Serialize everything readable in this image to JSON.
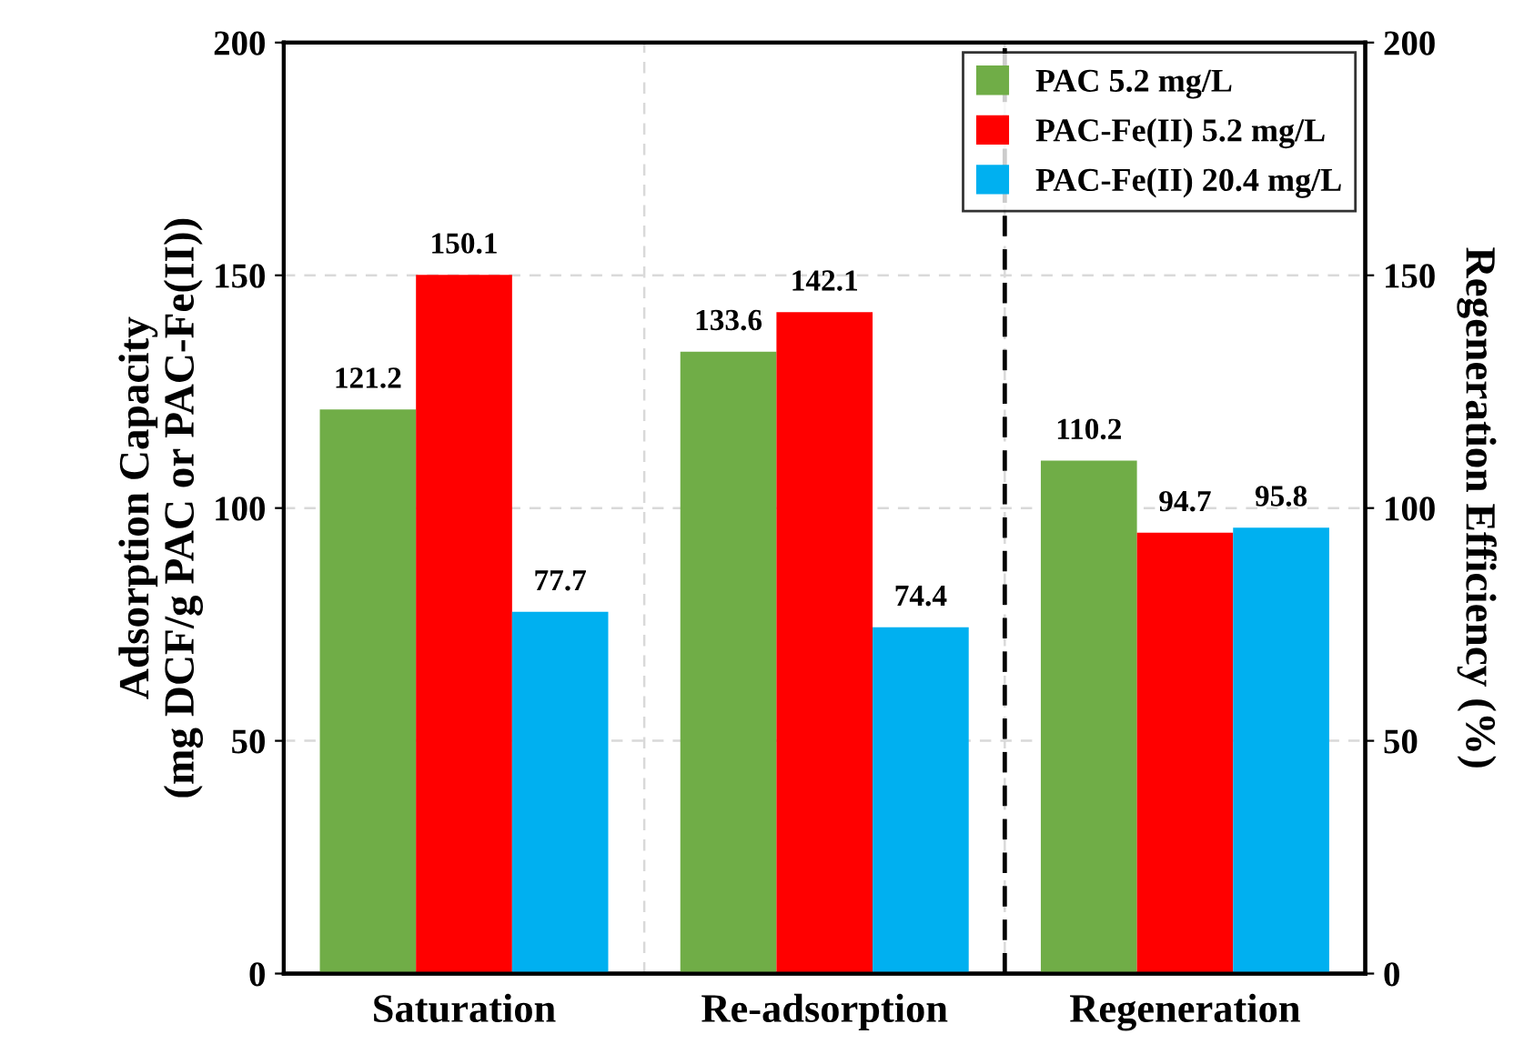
{
  "chart_data": {
    "type": "bar",
    "categories": [
      "Saturation",
      "Re-adsorption",
      "Regeneration"
    ],
    "ylabel": "Adsorption Capacity\n(mg DCF/g PAC or PAC-Fe(II))",
    "y2label": "Regeneration Efficiency (%)",
    "series": [
      {
        "name": "PAC 5.2 mg/L",
        "color": "#70ad47",
        "values": [
          121.2,
          133.6,
          110.2
        ]
      },
      {
        "name": "PAC-Fe(II) 5.2 mg/L",
        "color": "#ff0000",
        "values": [
          150.1,
          142.1,
          94.7
        ]
      },
      {
        "name": "PAC-Fe(II) 20.4 mg/L",
        "color": "#00b0f0",
        "values": [
          77.7,
          74.4,
          95.8
        ]
      }
    ],
    "ylim": [
      0,
      200
    ],
    "yticks": [
      0,
      50,
      100,
      150,
      200
    ],
    "y2lim": [
      0,
      200
    ],
    "y2ticks": [
      0,
      50,
      100,
      150,
      200
    ],
    "data_labels": true,
    "grid": true,
    "legend": "top right"
  }
}
